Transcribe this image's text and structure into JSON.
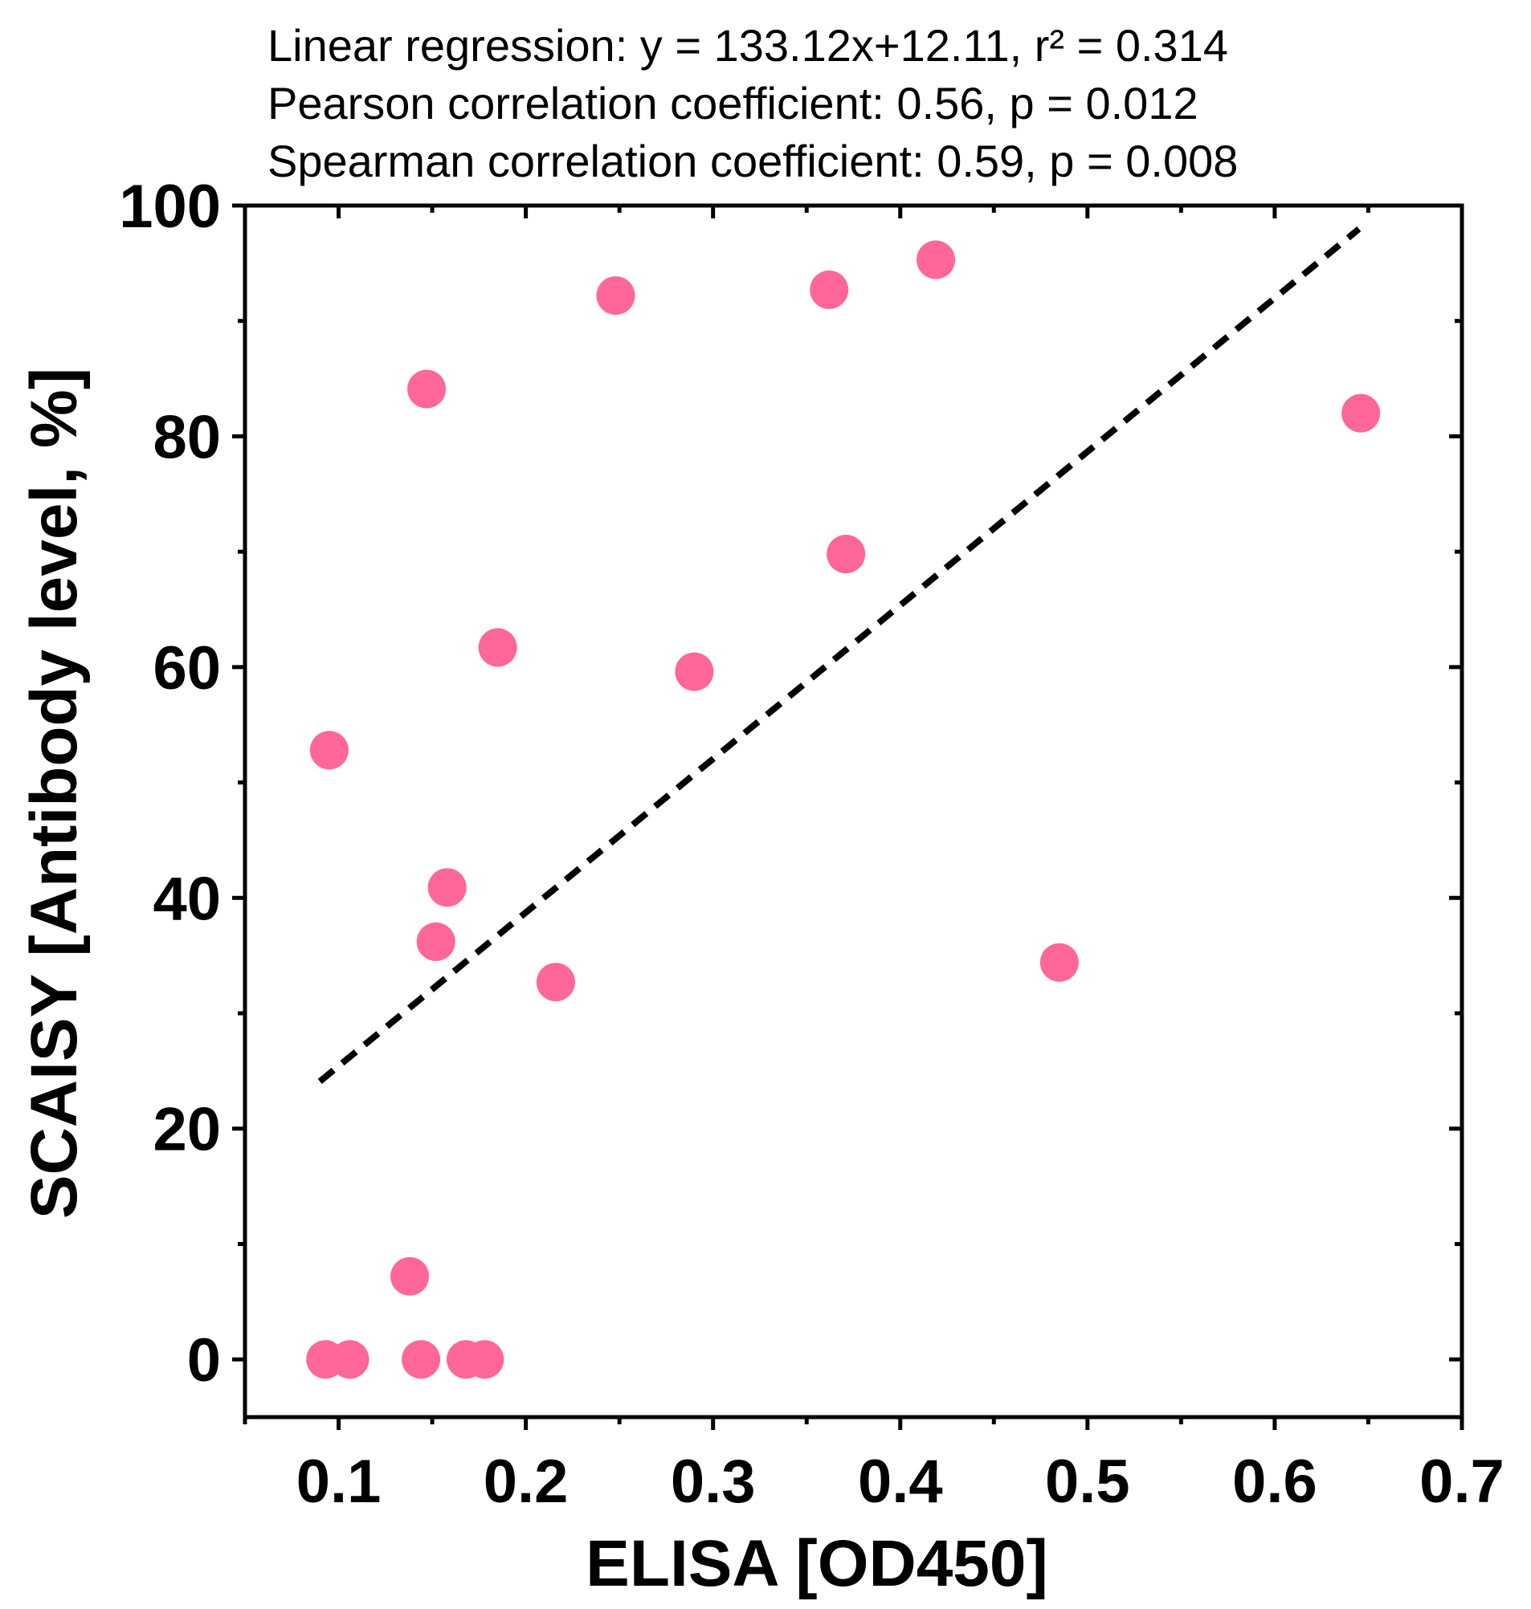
{
  "chart_data": {
    "type": "scatter",
    "title": "",
    "annotations": [
      "Linear regression: y = 133.12x+12.11, r² = 0.314",
      "Pearson correlation coefficient: 0.56, p = 0.012",
      "Spearman correlation coefficient: 0.59, p = 0.008"
    ],
    "xlabel": "ELISA [OD450]",
    "ylabel": "SCAISY [Antibody level, %]",
    "xlim": [
      0.05,
      0.7
    ],
    "ylim": [
      -5,
      100
    ],
    "x_ticks": [
      "0.1",
      "0.2",
      "0.3",
      "0.4",
      "0.5",
      "0.6",
      "0.7"
    ],
    "y_ticks": [
      "0",
      "20",
      "40",
      "60",
      "80",
      "100"
    ],
    "grid": false,
    "legend": "none",
    "point_color": "#FF6699",
    "series": [
      {
        "points": [
          {
            "x": 0.093,
            "y": 0.0
          },
          {
            "x": 0.106,
            "y": 0.0
          },
          {
            "x": 0.144,
            "y": 0.0
          },
          {
            "x": 0.168,
            "y": 0.0
          },
          {
            "x": 0.178,
            "y": 0.0
          },
          {
            "x": 0.138,
            "y": 7.2
          },
          {
            "x": 0.095,
            "y": 52.8
          },
          {
            "x": 0.147,
            "y": 84.1
          },
          {
            "x": 0.152,
            "y": 36.2
          },
          {
            "x": 0.158,
            "y": 40.9
          },
          {
            "x": 0.185,
            "y": 61.7
          },
          {
            "x": 0.216,
            "y": 32.7
          },
          {
            "x": 0.248,
            "y": 92.2
          },
          {
            "x": 0.29,
            "y": 59.6
          },
          {
            "x": 0.362,
            "y": 92.7
          },
          {
            "x": 0.371,
            "y": 69.8
          },
          {
            "x": 0.419,
            "y": 95.3
          },
          {
            "x": 0.485,
            "y": 34.4
          },
          {
            "x": 0.646,
            "y": 82.0
          }
        ]
      }
    ],
    "regression": {
      "slope": 133.12,
      "intercept": 12.11,
      "x_range": [
        0.09,
        0.645
      ],
      "style": "dashed"
    }
  }
}
